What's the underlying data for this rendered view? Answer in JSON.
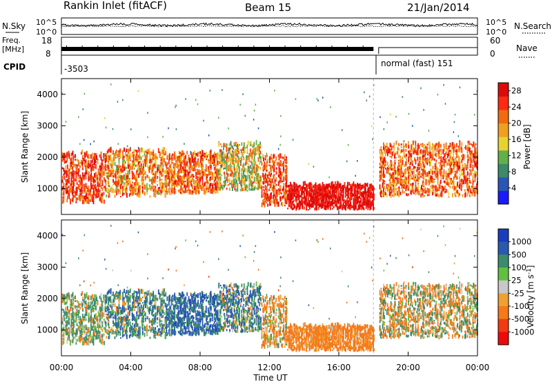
{
  "header": {
    "title": "Rankin Inlet (fitACF)",
    "beam": "Beam 15",
    "date": "21/Jan/2014"
  },
  "status_panels": {
    "nsky_label": "N.Sky",
    "nsearch_label": "N.Search",
    "freq_label_1": "Freq.",
    "freq_label_2": "[MHz]",
    "nave_label": "Nave",
    "cpid_label": "CPID",
    "noise_left_ticks": [
      "10^5",
      "10^0"
    ],
    "noise_right_ticks": [
      "10^5",
      "10^0"
    ],
    "freq_left_ticks": [
      "18",
      "8"
    ],
    "nave_right_ticks": [
      "60",
      "0"
    ],
    "cpid_1": "-3503",
    "cpid_2": "normal (fast) 151"
  },
  "colors": {
    "power_scale": [
      "#1a1aff",
      "#2a56b8",
      "#3c8a6a",
      "#62b04a",
      "#e8d230",
      "#f0a020",
      "#f26a10",
      "#ff2a10",
      "#dd0a0a"
    ],
    "velocity_scale": [
      "#ee0a0a",
      "#f23a10",
      "#f47a1a",
      "#f0a030",
      "#c8c8c8",
      "#60c040",
      "#3a8c6a",
      "#2a5ab0",
      "#1a3cc0"
    ]
  },
  "chart_data": [
    {
      "type": "heatmap",
      "name": "Power",
      "title": "",
      "xlabel": "Time UT",
      "ylabel": "Slant Range [km]",
      "x_ticks": [
        "00:00",
        "04:00",
        "08:00",
        "12:00",
        "16:00",
        "20:00",
        "00:00"
      ],
      "x_range_hours": [
        0,
        24
      ],
      "y_ticks": [
        1000,
        2000,
        3000,
        4000
      ],
      "y_range_km": [
        180,
        4500
      ],
      "colorbar_label": "Power [dB]",
      "colorbar_ticks": [
        "4",
        "8",
        "12",
        "16",
        "20",
        "24",
        "28"
      ],
      "colorbar_range": [
        0,
        30
      ],
      "data_gap_hours": [
        18.0,
        18.3
      ],
      "echo_regions": [
        {
          "start_h": 0.0,
          "end_h": 2.5,
          "low_km": 500,
          "high_km": 2100,
          "level": 25,
          "spread": 6
        },
        {
          "start_h": 2.5,
          "end_h": 6.0,
          "low_km": 700,
          "high_km": 2200,
          "level": 20,
          "spread": 8
        },
        {
          "start_h": 6.0,
          "end_h": 9.0,
          "low_km": 800,
          "high_km": 2100,
          "level": 22,
          "spread": 7
        },
        {
          "start_h": 9.0,
          "end_h": 11.5,
          "low_km": 900,
          "high_km": 2400,
          "level": 16,
          "spread": 9
        },
        {
          "start_h": 11.5,
          "end_h": 13.0,
          "low_km": 400,
          "high_km": 2000,
          "level": 24,
          "spread": 6
        },
        {
          "start_h": 13.0,
          "end_h": 18.0,
          "low_km": 300,
          "high_km": 1100,
          "level": 28,
          "spread": 4
        },
        {
          "start_h": 18.3,
          "end_h": 24.0,
          "low_km": 700,
          "high_km": 2400,
          "level": 22,
          "spread": 7
        }
      ]
    },
    {
      "type": "heatmap",
      "name": "Velocity",
      "title": "",
      "xlabel": "Time UT",
      "ylabel": "Slant Range [km]",
      "x_ticks": [
        "00:00",
        "04:00",
        "08:00",
        "12:00",
        "16:00",
        "20:00",
        "00:00"
      ],
      "x_range_hours": [
        0,
        24
      ],
      "y_ticks": [
        1000,
        2000,
        3000,
        4000
      ],
      "y_range_km": [
        180,
        4500
      ],
      "colorbar_label": "Velocity [m s^-1]",
      "colorbar_ticks": [
        "1000",
        "500",
        "100",
        "25",
        "-25",
        "-100",
        "-500",
        "-1000"
      ],
      "data_gap_hours": [
        18.0,
        18.3
      ],
      "echo_regions": [
        {
          "start_h": 0.0,
          "end_h": 2.5,
          "low_km": 500,
          "high_km": 2100,
          "velocity": 120,
          "spread": 300
        },
        {
          "start_h": 2.5,
          "end_h": 6.0,
          "low_km": 700,
          "high_km": 2200,
          "velocity": 300,
          "spread": 450
        },
        {
          "start_h": 6.0,
          "end_h": 9.0,
          "low_km": 800,
          "high_km": 2100,
          "velocity": 600,
          "spread": 500
        },
        {
          "start_h": 9.0,
          "end_h": 11.5,
          "low_km": 900,
          "high_km": 2400,
          "velocity": 400,
          "spread": 600
        },
        {
          "start_h": 11.5,
          "end_h": 13.0,
          "low_km": 400,
          "high_km": 2000,
          "velocity": -150,
          "spread": 350
        },
        {
          "start_h": 13.0,
          "end_h": 18.0,
          "low_km": 300,
          "high_km": 1100,
          "velocity": -250,
          "spread": 250
        },
        {
          "start_h": 18.3,
          "end_h": 24.0,
          "low_km": 700,
          "high_km": 2400,
          "velocity": -60,
          "spread": 400
        }
      ]
    }
  ]
}
